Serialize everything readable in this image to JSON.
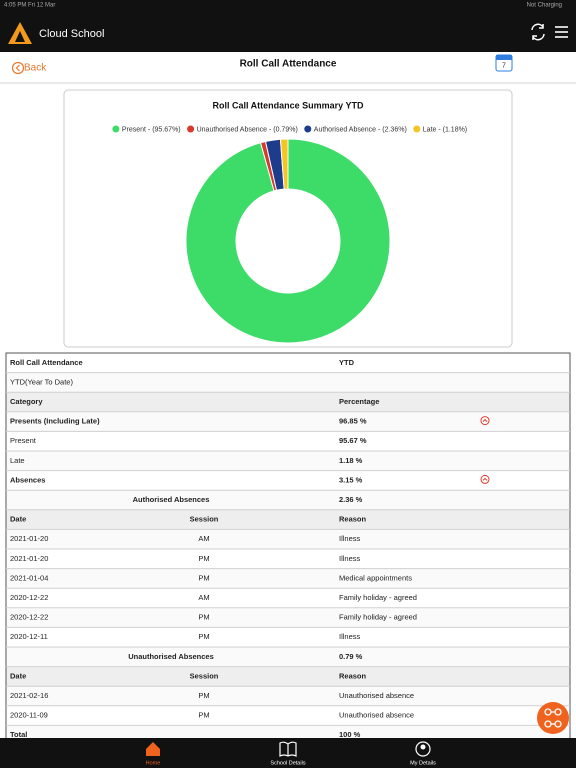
{
  "status_bar": {
    "left": "4:05 PM  Fri 12 Mar",
    "right": "Not Charging"
  },
  "app_bar": {
    "title": "Cloud School"
  },
  "nav": {
    "back": "Back",
    "title": "Roll Call Attendance",
    "calendar_day": "7"
  },
  "chart_data": {
    "type": "pie",
    "donut": true,
    "title": "Roll Call Attendance Summary YTD",
    "categories": [
      "Present - (95.67%)",
      "Unauthorised Absence - (0.79%)",
      "Authorised Absence - (2.36%)",
      "Late - (1.18%)"
    ],
    "values": [
      95.67,
      0.79,
      2.36,
      1.18
    ],
    "colors": [
      "#3ddc68",
      "#d8392b",
      "#1e3c8c",
      "#f5c623"
    ]
  },
  "table": {
    "rows": [
      [
        "Roll Call Attendance",
        "YTD"
      ],
      [
        "YTD(Year To Date)"
      ],
      [
        "Category",
        "Percentage"
      ],
      [
        "Presents (Including Late)",
        "96.85 %"
      ],
      [
        "Present",
        "95.67 %"
      ],
      [
        "Late",
        "1.18 %"
      ],
      [
        "Absences",
        "3.15 %"
      ],
      [
        "Authorised Absences",
        "2.36 %"
      ],
      [
        "Date",
        "Session",
        "Reason"
      ],
      [
        "2021-01-20",
        "AM",
        "Illness"
      ],
      [
        "2021-01-20",
        "PM",
        "Illness"
      ],
      [
        "2021-01-04",
        "PM",
        "Medical appointments"
      ],
      [
        "2020-12-22",
        "AM",
        "Family holiday - agreed"
      ],
      [
        "2020-12-22",
        "PM",
        "Family holiday - agreed"
      ],
      [
        "2020-12-11",
        "PM",
        "Illness"
      ],
      [
        "Unauthorised Absences",
        "0.79 %"
      ],
      [
        "Date",
        "Session",
        "Reason"
      ],
      [
        "2021-02-16",
        "PM",
        "Unauthorised absence"
      ],
      [
        "2020-11-09",
        "PM",
        "Unauthorised absence"
      ],
      [
        "Total",
        "100 %"
      ]
    ]
  },
  "bottom_nav": [
    "Home",
    "School Details",
    "My Details"
  ]
}
